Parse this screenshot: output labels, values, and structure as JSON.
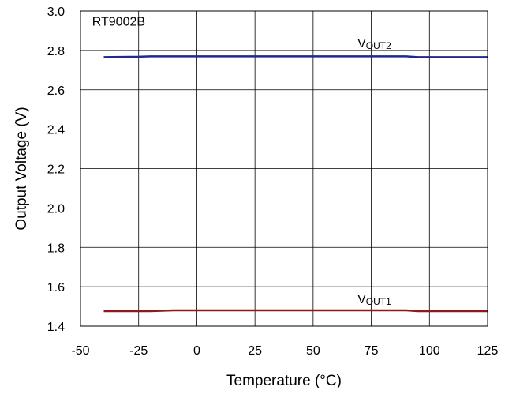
{
  "chart_data": {
    "type": "line",
    "title": "",
    "xlabel": "Temperature (°C)",
    "ylabel": "Output Voltage (V)",
    "xlim": [
      -50,
      125
    ],
    "ylim": [
      1.4,
      3.0
    ],
    "x_ticks": [
      -50,
      -25,
      0,
      25,
      50,
      75,
      100,
      125
    ],
    "y_ticks": [
      1.4,
      1.6,
      1.8,
      2.0,
      2.2,
      2.4,
      2.6,
      2.8,
      3.0
    ],
    "x_tick_labels": [
      "-50",
      "-25",
      "0",
      "25",
      "50",
      "75",
      "100",
      "125"
    ],
    "y_tick_labels": [
      "1.4",
      "1.6",
      "1.8",
      "2.0",
      "2.2",
      "2.4",
      "2.6",
      "2.8",
      "3.0"
    ],
    "grid": true,
    "annotations": [
      {
        "id": "device",
        "text": "RT9002B",
        "x": -45,
        "y": 2.95
      }
    ],
    "series": [
      {
        "label_main": "V",
        "label_sub": "OUT2",
        "label_x": 65,
        "label_y": 2.84,
        "color": "#1f2a8c",
        "x": [
          -40,
          -25,
          -20,
          0,
          25,
          50,
          75,
          90,
          95,
          100,
          125
        ],
        "y": [
          2.766,
          2.768,
          2.77,
          2.77,
          2.77,
          2.77,
          2.77,
          2.77,
          2.766,
          2.766,
          2.766
        ]
      },
      {
        "label_main": "V",
        "label_sub": "OUT1",
        "label_x": 65,
        "label_y": 1.54,
        "color": "#8b1a1a",
        "x": [
          -40,
          -20,
          -10,
          0,
          25,
          50,
          75,
          90,
          95,
          100,
          125
        ],
        "y": [
          1.476,
          1.476,
          1.48,
          1.48,
          1.48,
          1.48,
          1.48,
          1.48,
          1.476,
          1.476,
          1.476
        ]
      }
    ]
  }
}
